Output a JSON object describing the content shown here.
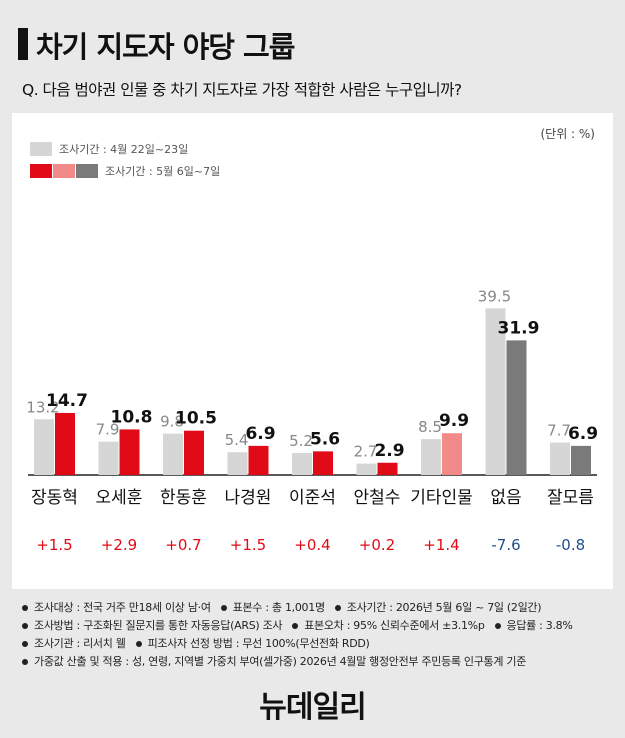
{
  "header": {
    "title": "차기 지도자 야당 그룹",
    "question": "Q. 다음 범야권 인물 중 차기 지도자로 가장 적합한 사람은 누구입니까?"
  },
  "colors": {
    "prev": "#d6d6d6",
    "current": "#e00b16",
    "current_other": "#f28a8a",
    "current_none": "#7a7a7a",
    "increase": "#e00b16",
    "decrease": "#1f4e8c"
  },
  "chart_data": {
    "type": "bar",
    "unit_label": "(단위 : %)",
    "categories": [
      "장동혁",
      "오세훈",
      "한동훈",
      "나경원",
      "이준석",
      "안철수",
      "기타인물",
      "없음",
      "잘모름"
    ],
    "series": [
      {
        "name": "조사기간 : 4월 22일~23일",
        "values": [
          13.2,
          7.9,
          9.8,
          5.4,
          5.2,
          2.7,
          8.5,
          39.5,
          7.7
        ]
      },
      {
        "name": "조사기간 : 5월 6일~7일",
        "values": [
          14.7,
          10.8,
          10.5,
          6.9,
          5.6,
          2.9,
          9.9,
          31.9,
          6.9
        ]
      }
    ],
    "changes": [
      "+1.5",
      "+2.9",
      "+0.7",
      "+1.5",
      "+0.4",
      "+0.2",
      "+1.4",
      "-7.6",
      "-0.8"
    ],
    "ylim": [
      0,
      40
    ]
  },
  "notes": {
    "line1": [
      "조사대상 : 전국 거주 만18세 이상 남·여",
      "표본수 : 총 1,001명",
      "조사기간 : 2026년 5월 6일 ~ 7일 (2일간)"
    ],
    "line2": [
      "조사방법 : 구조화된 질문지를 통한 자동응답(ARS) 조사",
      "표본오차 : 95% 신뢰수준에서 ±3.1%p",
      "응답률 : 3.8%"
    ],
    "line3": [
      "조사기관 : 리서치 웰",
      "피조사자 선정 방법 : 무선 100%(무선전화 RDD)"
    ],
    "line4": [
      "가중값 산출 및 적용 : 성, 연령, 지역별 가중치 부여(셀가중) 2026년 4월말 행정안전부 주민등록 인구통계 기준"
    ]
  },
  "logo": "뉴데일리"
}
